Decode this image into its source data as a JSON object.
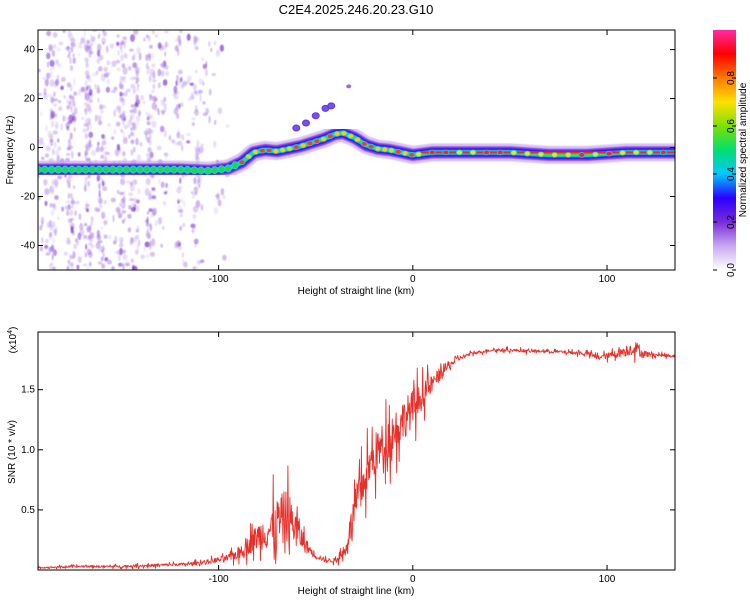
{
  "title": "C2E4.2025.246.20.23.G10",
  "colors": {
    "snr_line": "#e8302a",
    "background": "#ffffff"
  },
  "chart_data": [
    {
      "type": "heatmap",
      "xlabel": "Height of straight line (km)",
      "ylabel": "Frequency (Hz)",
      "xlim": [
        -193,
        135
      ],
      "ylim": [
        -50,
        48
      ],
      "xticks": [
        -100,
        0,
        100
      ],
      "xtick_labels": [
        "-100",
        "0",
        "100"
      ],
      "yticks": [
        40,
        20,
        0,
        -20,
        -40
      ],
      "ytick_labels": [
        "40",
        "20",
        "0",
        "-20",
        "-40"
      ],
      "colorbar": {
        "label": "Normalized spectral amplitude",
        "range": [
          0,
          1
        ],
        "ticks": [
          0.0,
          0.2,
          0.4,
          0.6,
          0.8
        ],
        "tick_labels": [
          "0.0",
          "0.2",
          "0.4",
          "0.6",
          "0.8"
        ],
        "colormap": [
          "#ffffff",
          "#c9a8f0",
          "#7a2bd9",
          "#2a00ff",
          "#00c8ff",
          "#00e070",
          "#7ee000",
          "#ffe000",
          "#ff7a00",
          "#ff0000",
          "#ff2aa0"
        ]
      },
      "ridge": {
        "x": [
          -193,
          -180,
          -160,
          -140,
          -120,
          -105,
          -95,
          -88,
          -82,
          -76,
          -70,
          -64,
          -58,
          -52,
          -46,
          -40,
          -36,
          -30,
          -24,
          -18,
          -12,
          -6,
          0,
          10,
          30,
          50,
          70,
          90,
          110,
          135
        ],
        "frequency": [
          -9,
          -9,
          -9,
          -9,
          -9,
          -9.5,
          -8.5,
          -6,
          -2,
          -1,
          -1.5,
          -0.5,
          0.5,
          2,
          3.5,
          5.5,
          6,
          4,
          1,
          -0.5,
          -1,
          -2,
          -3,
          -2,
          -2,
          -2,
          -3,
          -3,
          -2,
          -2
        ]
      }
    },
    {
      "type": "line",
      "xlabel": "Height of straight line (km)",
      "ylabel": "SNR (10 * v/v)",
      "y_multiplier": "(x10",
      "y_multiplier_exp": "4",
      "y_multiplier_close": ")",
      "xlim": [
        -193,
        135
      ],
      "ylim": [
        0,
        1.98
      ],
      "xticks": [
        -100,
        0,
        100
      ],
      "xtick_labels": [
        "-100",
        "0",
        "100"
      ],
      "yticks": [
        0.5,
        1.0,
        1.5
      ],
      "ytick_labels": [
        "0.5",
        "1.0",
        "1.5"
      ],
      "series": [
        {
          "x": [
            -193,
            -170,
            -150,
            -130,
            -115,
            -105,
            -95,
            -90,
            -85,
            -80,
            -75,
            -70,
            -65,
            -60,
            -55,
            -50,
            -45,
            -40,
            -35,
            -30,
            -25,
            -20,
            -15,
            -10,
            -5,
            0,
            5,
            10,
            15,
            20,
            25,
            30,
            40,
            50,
            60,
            70,
            80,
            90,
            95,
            100,
            110,
            115,
            118,
            125,
            135
          ],
          "y": [
            0.02,
            0.03,
            0.03,
            0.04,
            0.05,
            0.07,
            0.1,
            0.14,
            0.2,
            0.28,
            0.32,
            0.38,
            0.45,
            0.35,
            0.2,
            0.12,
            0.08,
            0.08,
            0.15,
            0.5,
            0.75,
            0.95,
            1.05,
            1.15,
            1.25,
            1.35,
            1.45,
            1.55,
            1.65,
            1.72,
            1.77,
            1.8,
            1.83,
            1.83,
            1.82,
            1.82,
            1.81,
            1.8,
            1.77,
            1.78,
            1.82,
            1.85,
            1.8,
            1.79,
            1.78
          ],
          "amp": [
            0.01,
            0.015,
            0.015,
            0.02,
            0.02,
            0.03,
            0.05,
            0.08,
            0.12,
            0.18,
            0.25,
            0.35,
            0.38,
            0.25,
            0.1,
            0.04,
            0.03,
            0.03,
            0.08,
            0.25,
            0.28,
            0.3,
            0.3,
            0.3,
            0.28,
            0.25,
            0.18,
            0.12,
            0.08,
            0.05,
            0.03,
            0.02,
            0.02,
            0.02,
            0.02,
            0.02,
            0.02,
            0.03,
            0.03,
            0.04,
            0.07,
            0.09,
            0.06,
            0.02,
            0.02
          ]
        }
      ]
    }
  ]
}
